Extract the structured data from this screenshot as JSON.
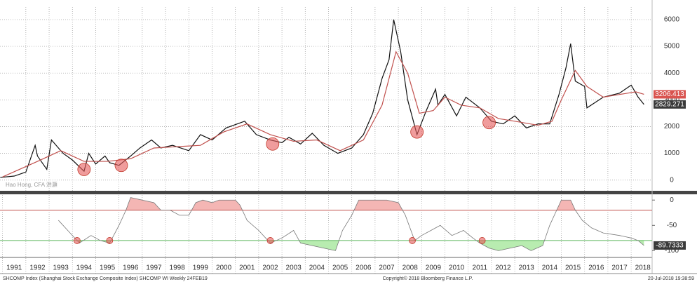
{
  "chart_data": [
    {
      "type": "line",
      "panel": "top",
      "xlim": [
        1990.89,
        2018.9
      ],
      "ylim": [
        -400,
        6470
      ],
      "yticks": [
        0,
        1000,
        2000,
        3000,
        4000,
        5000,
        6000
      ],
      "xticks": [
        1992,
        1993,
        1994,
        1995,
        1996,
        1997,
        1998,
        1999,
        2000,
        2001,
        2002,
        2003,
        2004,
        2005,
        2006,
        2007,
        2008,
        2009,
        2010,
        2011,
        2012,
        2013,
        2014,
        2015,
        2016,
        2017,
        2018
      ],
      "grid": true,
      "annotation": "Hao Hong, CFA 洪灝",
      "series": [
        {
          "color": "#111111",
          "x": [
            1990.9,
            1991.5,
            1992.0,
            1992.4,
            1992.5,
            1992.9,
            1993.1,
            1993.6,
            1994.0,
            1994.5,
            1994.7,
            1995.0,
            1995.4,
            1995.6,
            1996.0,
            1996.5,
            1996.9,
            1997.4,
            1997.8,
            1998.3,
            1999.0,
            1999.5,
            2000.0,
            2000.6,
            2001.4,
            2001.9,
            2002.5,
            2003.0,
            2003.3,
            2003.8,
            2004.3,
            2004.8,
            2005.4,
            2006.0,
            2006.5,
            2006.9,
            2007.3,
            2007.6,
            2007.8,
            2008.1,
            2008.4,
            2008.8,
            2009.2,
            2009.6,
            2009.7,
            2010.0,
            2010.5,
            2010.9,
            2011.5,
            2012.0,
            2012.5,
            2013.0,
            2013.5,
            2014.0,
            2014.5,
            2014.9,
            2015.2,
            2015.4,
            2015.6,
            2016.0,
            2016.1,
            2016.8,
            2017.5,
            2018.0,
            2018.3,
            2018.55
          ],
          "values": [
            100,
            150,
            300,
            1300,
            900,
            400,
            1500,
            1000,
            750,
            330,
            1000,
            600,
            900,
            650,
            550,
            900,
            1200,
            1500,
            1200,
            1300,
            1100,
            1700,
            1500,
            1950,
            2200,
            1700,
            1500,
            1400,
            1600,
            1350,
            1750,
            1300,
            1000,
            1200,
            1700,
            2500,
            3800,
            4500,
            6000,
            4800,
            3000,
            1700,
            2600,
            3400,
            2800,
            3200,
            2400,
            3100,
            2700,
            2200,
            2100,
            2400,
            1950,
            2100,
            2100,
            3200,
            4200,
            5100,
            3700,
            3500,
            2700,
            3100,
            3250,
            3550,
            3100,
            2829.271
          ]
        },
        {
          "color": "#c0504d",
          "x": [
            1991.0,
            1992.5,
            1993.5,
            1994.5,
            1995.5,
            1996.5,
            1997.5,
            1998.5,
            1999.5,
            2000.5,
            2001.5,
            2002.5,
            2003.5,
            2004.5,
            2005.5,
            2006.5,
            2007.3,
            2007.9,
            2008.4,
            2008.9,
            2009.5,
            2010.0,
            2010.7,
            2011.5,
            2012.3,
            2013.0,
            2014.0,
            2014.6,
            2015.0,
            2015.6,
            2016.1,
            2016.8,
            2017.5,
            2018.2,
            2018.55
          ],
          "values": [
            120,
            700,
            1100,
            700,
            700,
            800,
            1200,
            1250,
            1300,
            1800,
            2100,
            1700,
            1450,
            1500,
            1100,
            1500,
            2800,
            4800,
            4000,
            2500,
            2600,
            3100,
            2800,
            2700,
            2300,
            2200,
            2050,
            2200,
            3000,
            4100,
            3500,
            3100,
            3200,
            3300,
            3206.413
          ]
        }
      ],
      "highlights": [
        {
          "x": 1994.5,
          "y": 400
        },
        {
          "x": 1996.1,
          "y": 550
        },
        {
          "x": 2002.6,
          "y": 1350
        },
        {
          "x": 2008.8,
          "y": 1800
        },
        {
          "x": 2011.9,
          "y": 2150
        }
      ]
    },
    {
      "type": "line",
      "panel": "bottom",
      "xlim": [
        1990.89,
        2018.9
      ],
      "ylim": [
        -112,
        10
      ],
      "yticks": [
        0,
        -50,
        -100
      ],
      "xticks": [
        {
          "value": 1991,
          "label": "1991"
        },
        {
          "value": 1992,
          "label": "1992"
        },
        {
          "value": 1993,
          "label": "1993"
        },
        {
          "value": 1994,
          "label": "1994"
        },
        {
          "value": 1995,
          "label": "1995"
        },
        {
          "value": 1996,
          "label": "1996"
        },
        {
          "value": 1997,
          "label": "1997"
        },
        {
          "value": 1998,
          "label": "1998"
        },
        {
          "value": 1999,
          "label": "1999"
        },
        {
          "value": 2000,
          "label": "2000"
        },
        {
          "value": 2001,
          "label": "2001"
        },
        {
          "value": 2002,
          "label": "2002"
        },
        {
          "value": 2003,
          "label": "2003"
        },
        {
          "value": 2004,
          "label": "2004"
        },
        {
          "value": 2005,
          "label": "2005"
        },
        {
          "value": 2006,
          "label": "2006"
        },
        {
          "value": 2007,
          "label": "2007"
        },
        {
          "value": 2008,
          "label": "2008"
        },
        {
          "value": 2009,
          "label": "2009"
        },
        {
          "value": 2010,
          "label": "2010"
        },
        {
          "value": 2011,
          "label": "2011"
        },
        {
          "value": 2012,
          "label": "2012"
        },
        {
          "value": 2013,
          "label": "2013"
        },
        {
          "value": 2014,
          "label": "2014"
        },
        {
          "value": 2015,
          "label": "2015"
        },
        {
          "value": 2016,
          "label": "2016"
        },
        {
          "value": 2017,
          "label": "2017"
        },
        {
          "value": 2018,
          "label": "2018"
        }
      ],
      "levels": [
        {
          "value": -20,
          "color": "#c0504d",
          "fill": "#f4b6b4"
        },
        {
          "value": -80,
          "color": "#5cb85c",
          "fill": "#b8ecb0"
        }
      ],
      "series": [
        {
          "color": "#777777",
          "x": [
            1993.4,
            1993.8,
            1994.3,
            1994.8,
            1995.2,
            1995.6,
            1996.0,
            1996.3,
            1996.5,
            1997.0,
            1997.5,
            1997.8,
            1998.2,
            1998.6,
            1999.0,
            1999.3,
            1999.6,
            2000.0,
            2000.3,
            2001.0,
            2001.2,
            2001.5,
            2002.0,
            2002.5,
            2003.0,
            2003.5,
            2003.8,
            2004.3,
            2004.8,
            2005.3,
            2005.6,
            2006.0,
            2006.3,
            2006.8,
            2007.5,
            2008.0,
            2008.3,
            2008.7,
            2009.0,
            2009.4,
            2009.8,
            2010.3,
            2010.8,
            2011.2,
            2011.5,
            2011.9,
            2012.3,
            2012.8,
            2013.3,
            2013.7,
            2014.2,
            2014.5,
            2014.8,
            2015.0,
            2015.4,
            2015.6,
            2015.9,
            2016.3,
            2016.8,
            2017.5,
            2018.0,
            2018.3,
            2018.55
          ],
          "values": [
            -40,
            -60,
            -85,
            -70,
            -80,
            -85,
            -50,
            -20,
            5,
            0,
            -5,
            -20,
            -20,
            -30,
            -30,
            -5,
            0,
            -5,
            0,
            0,
            -10,
            -40,
            -60,
            -85,
            -75,
            -60,
            -85,
            -90,
            -95,
            -100,
            -60,
            -30,
            0,
            0,
            0,
            -5,
            -30,
            -80,
            -70,
            -60,
            -50,
            -70,
            -60,
            -75,
            -85,
            -95,
            -100,
            -95,
            -90,
            -100,
            -90,
            -50,
            -20,
            0,
            0,
            -20,
            -40,
            -55,
            -65,
            -70,
            -75,
            -80,
            -89.7333
          ]
        }
      ],
      "highlights": [
        {
          "x": 1994.2,
          "y": -80
        },
        {
          "x": 1995.6,
          "y": -80
        },
        {
          "x": 2002.5,
          "y": -80
        },
        {
          "x": 2008.6,
          "y": -80
        },
        {
          "x": 2011.6,
          "y": -80
        }
      ]
    }
  ],
  "footer": {
    "left": "SHCOMP Index (Shanghai Stock Exchange Composite Index) SHCOMP WI Weekly 24FEB19",
    "center": "Copyright© 2018 Bloomberg Finance L.P.",
    "right": "20-Jul-2018 19:38:59"
  }
}
